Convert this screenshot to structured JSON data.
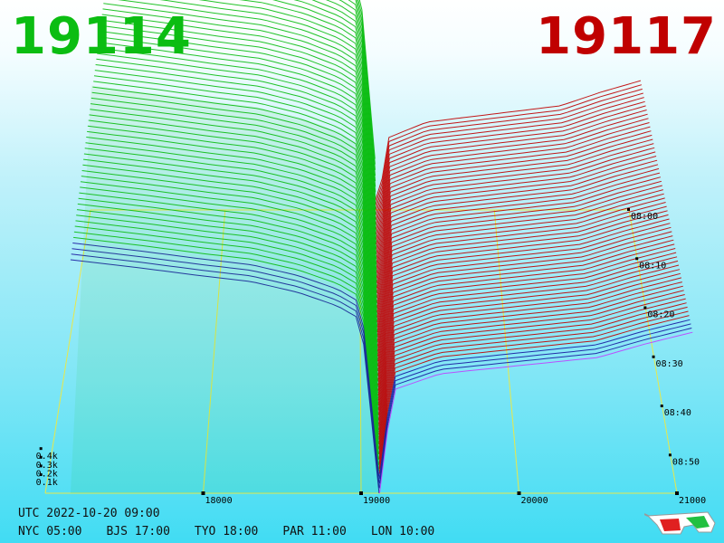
{
  "header": {
    "bid_price": "19114",
    "ask_price": "19117"
  },
  "footer": {
    "utc": "UTC 2022-10-20 09:00",
    "zones": [
      "NYC 05:00",
      "BJS 17:00",
      "TYO 18:00",
      "PAR 11:00",
      "LON 10:00"
    ]
  },
  "icons": {
    "glasses": "3d-glasses-icon"
  },
  "colors": {
    "bid": "#0bbd12",
    "ask": "#c00000",
    "frame": "#e8e84a",
    "recent": "#1a1aa0",
    "latest": "#c040ff"
  },
  "chart_data": {
    "type": "area",
    "x_ticks": [
      "18000",
      "19000",
      "20000",
      "21000"
    ],
    "x_values": [
      18000,
      19000,
      20000,
      21000
    ],
    "depth_ticks": [
      "0.1k",
      "0.2k",
      "0.3k",
      "0.4k"
    ],
    "depth_values": [
      100,
      200,
      300,
      400
    ],
    "time_ticks": [
      "08:00",
      "08:10",
      "08:20",
      "08:30",
      "08:40",
      "08:50"
    ],
    "mid_price": 19115,
    "bid_price": 19114,
    "ask_price": 19117,
    "series": [
      {
        "name": "",
        "side": "bid",
        "points": [
          [
            17160,
            430
          ],
          [
            17600,
            415
          ],
          [
            18000,
            400
          ],
          [
            18300,
            390
          ],
          [
            18600,
            370
          ],
          [
            18850,
            345
          ],
          [
            19000,
            320
          ],
          [
            19114,
            0
          ]
        ]
      },
      {
        "name": "",
        "side": "ask",
        "points": [
          [
            19117,
            0
          ],
          [
            19200,
            190
          ],
          [
            19500,
            220
          ],
          [
            20000,
            235
          ],
          [
            20500,
            250
          ],
          [
            20800,
            275
          ],
          [
            21150,
            300
          ]
        ]
      }
    ]
  }
}
